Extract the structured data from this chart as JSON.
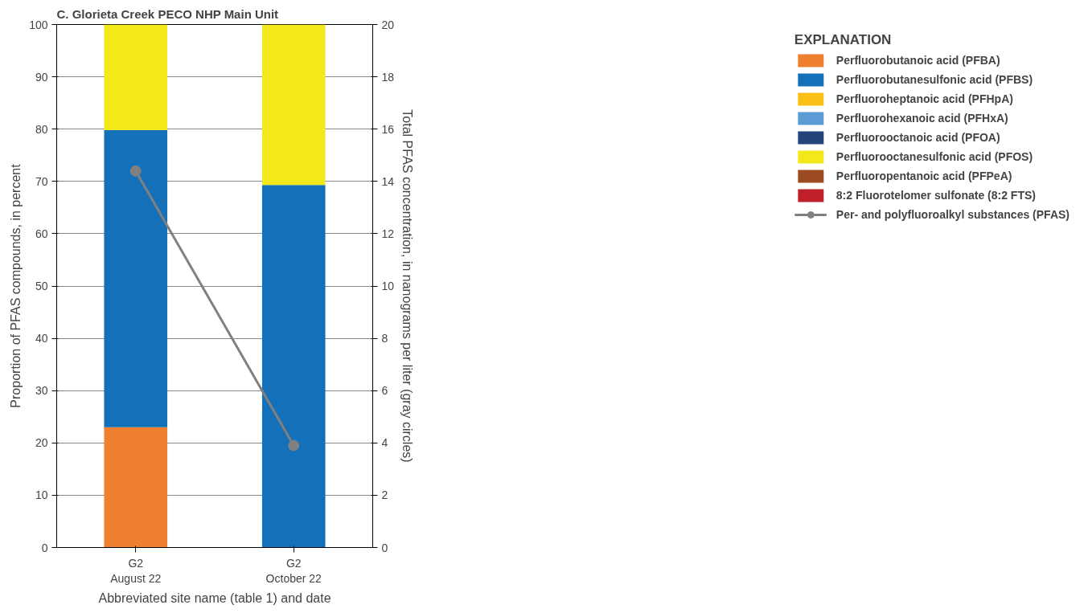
{
  "chart_data": {
    "type": "bar",
    "stacked": true,
    "title": "C. Glorieta Creek PECO NHP Main Unit",
    "categories": [
      "G2\nAugust 22",
      "G2\nOctober 22"
    ],
    "xlabel": "Abbreviated site name (table 1) and date",
    "ylabel": "Proportion of PFAS compounds, in percent",
    "y2label": "Total PFAS concentration, in nanograms per liter (gray circles)",
    "ylim": [
      0,
      100
    ],
    "yticks": [
      0,
      10,
      20,
      30,
      40,
      50,
      60,
      70,
      80,
      90,
      100
    ],
    "y2lim": [
      0,
      20
    ],
    "y2ticks": [
      0,
      2,
      4,
      6,
      8,
      10,
      12,
      14,
      16,
      18,
      20
    ],
    "grid": "y",
    "legend": "right",
    "legend_title": "EXPLANATION",
    "series": [
      {
        "name": "Perfluorobutanoic acid (PFBA)",
        "color": "#ee8030",
        "values": [
          23.0,
          0
        ]
      },
      {
        "name": "Perfluorobutanesulfonic acid (PFBS)",
        "color": "#1470b8",
        "values": [
          56.8,
          69.3
        ]
      },
      {
        "name": "Perfluoroheptanoic acid (PFHpA)",
        "color": "#fbc015",
        "values": [
          0,
          0
        ]
      },
      {
        "name": "Perfluorohexanoic acid (PFHxA)",
        "color": "#5b9bd5",
        "values": [
          0,
          0
        ]
      },
      {
        "name": "Perfluorooctanoic acid (PFOA)",
        "color": "#234577",
        "values": [
          0,
          0
        ]
      },
      {
        "name": "Perfluorooctanesulfonic acid (PFOS)",
        "color": "#f2e81a",
        "values": [
          20.2,
          30.7
        ]
      },
      {
        "name": "Perfluoropentanoic acid (PFPeA)",
        "color": "#9b4a22",
        "values": [
          0,
          0
        ]
      },
      {
        "name": "8:2 Fluorotelomer sulfonate (8:2 FTS)",
        "color": "#c0202a",
        "values": [
          0,
          0
        ]
      },
      {
        "name": "Per- and polyfluoroalkyl substances (PFAS)",
        "type": "line",
        "axis": "y2",
        "marker": "circle",
        "color": "#808080",
        "values": [
          14.4,
          3.9
        ]
      }
    ]
  }
}
